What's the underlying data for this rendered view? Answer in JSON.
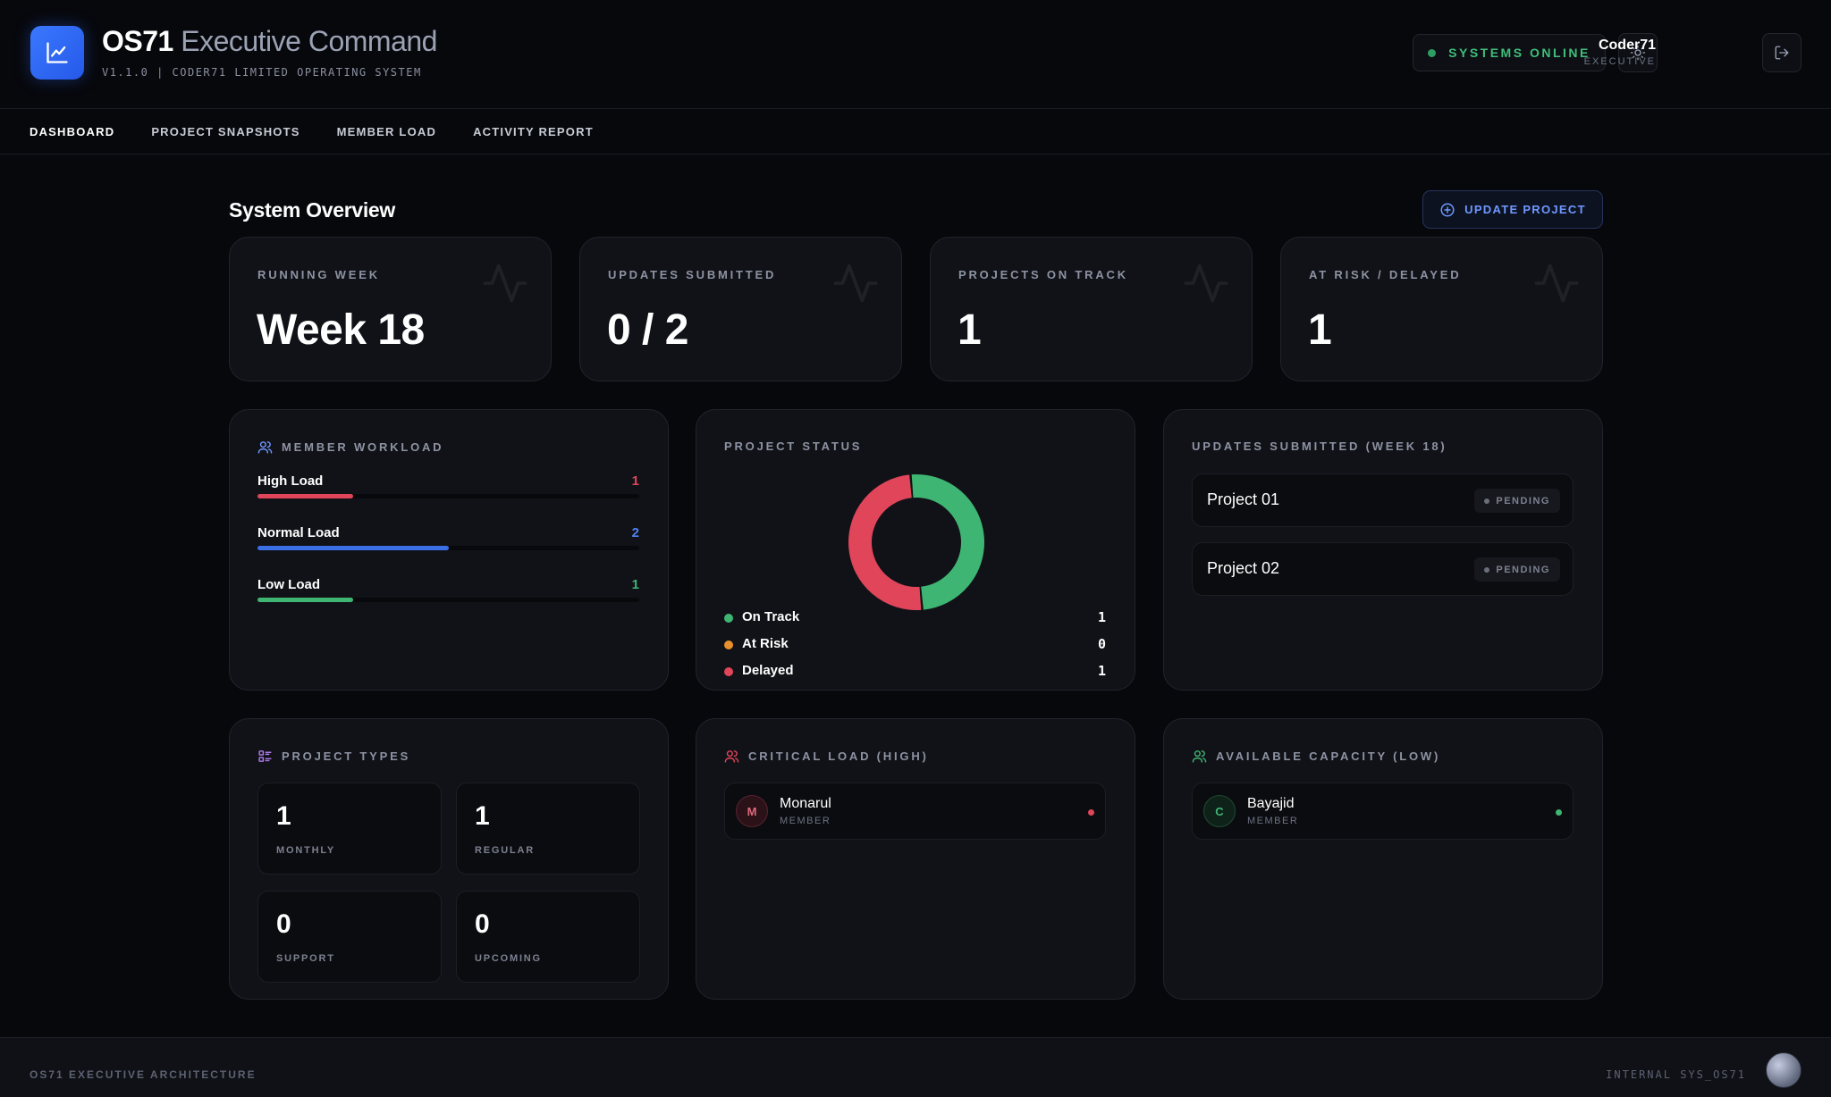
{
  "header": {
    "title_strong": "OS71",
    "title_light": "Executive Command",
    "subtitle": "V1.1.0 | CODER71 LIMITED OPERATING SYSTEM",
    "system_status": "SYSTEMS ONLINE",
    "user_name": "Coder71",
    "user_role": "EXECUTIVE"
  },
  "nav": {
    "items": [
      "DASHBOARD",
      "PROJECT SNAPSHOTS",
      "MEMBER LOAD",
      "ACTIVITY REPORT"
    ]
  },
  "main": {
    "section_title": "System Overview",
    "update_button": "UPDATE PROJECT",
    "stats": [
      {
        "label": "RUNNING WEEK",
        "value": "Week 18"
      },
      {
        "label": "UPDATES SUBMITTED",
        "value": "0 / 2"
      },
      {
        "label": "PROJECTS ON TRACK",
        "value": "1"
      },
      {
        "label": "AT RISK / DELAYED",
        "value": "1"
      }
    ],
    "workload": {
      "title": "MEMBER WORKLOAD",
      "rows": [
        {
          "name": "High Load",
          "count": "1",
          "fraction": 0.25,
          "color": "#e0455a"
        },
        {
          "name": "Normal Load",
          "count": "2",
          "fraction": 0.5,
          "color": "#3b6fe6"
        },
        {
          "name": "Low Load",
          "count": "1",
          "fraction": 0.25,
          "color": "#3fb573"
        }
      ]
    },
    "project_status": {
      "title": "PROJECT STATUS",
      "legend": [
        {
          "name": "On Track",
          "value": "1",
          "color": "#3fb573"
        },
        {
          "name": "At Risk",
          "value": "0",
          "color": "#e8912c"
        },
        {
          "name": "Delayed",
          "value": "1",
          "color": "#e0455a"
        }
      ]
    },
    "updates": {
      "title": "UPDATES SUBMITTED (WEEK 18)",
      "items": [
        {
          "name": "Project 01",
          "status": "PENDING"
        },
        {
          "name": "Project 02",
          "status": "PENDING"
        }
      ]
    },
    "project_types": {
      "title": "PROJECT TYPES",
      "items": [
        {
          "num": "1",
          "label": "MONTHLY"
        },
        {
          "num": "1",
          "label": "REGULAR"
        },
        {
          "num": "0",
          "label": "SUPPORT"
        },
        {
          "num": "0",
          "label": "UPCOMING"
        }
      ]
    },
    "critical_load": {
      "title": "CRITICAL LOAD (HIGH)",
      "member": {
        "initial": "M",
        "name": "Monarul",
        "role": "MEMBER"
      }
    },
    "available_capacity": {
      "title": "AVAILABLE CAPACITY (LOW)",
      "member": {
        "initial": "C",
        "name": "Bayajid",
        "role": "MEMBER"
      }
    }
  },
  "footer": {
    "left": "OS71 EXECUTIVE ARCHITECTURE",
    "right": "INTERNAL SYS_OS71"
  },
  "colors": {
    "accent": "#3a78ff",
    "on_track": "#3fb573",
    "at_risk": "#e8912c",
    "delayed": "#e0455a"
  }
}
